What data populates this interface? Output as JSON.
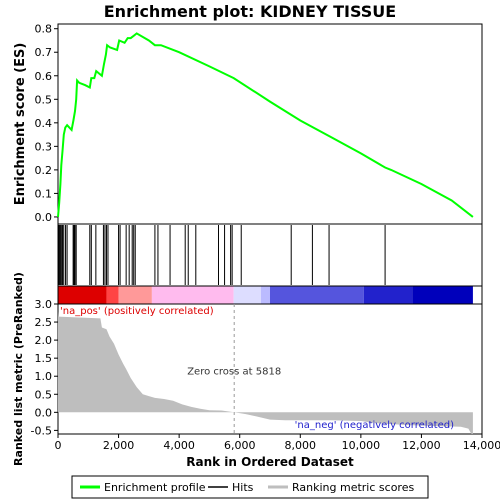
{
  "chart_data": {
    "type": "line",
    "title": "Enrichment plot: KIDNEY TISSUE",
    "top_panel": {
      "ylabel": "Enrichment score (ES)",
      "ylim": [
        -0.03,
        0.82
      ],
      "yticks": [
        0.0,
        0.1,
        0.2,
        0.3,
        0.4,
        0.5,
        0.6,
        0.7,
        0.8
      ],
      "ytick_labels": [
        "0.0",
        "0.1",
        "0.2",
        "0.3",
        "0.4",
        "0.5",
        "0.6",
        "0.7",
        "0.8"
      ],
      "series": [
        {
          "name": "Enrichment profile",
          "color": "#00ff00",
          "points": [
            [
              0,
              0.0
            ],
            [
              40,
              0.06
            ],
            [
              80,
              0.14
            ],
            [
              110,
              0.22
            ],
            [
              150,
              0.28
            ],
            [
              190,
              0.35
            ],
            [
              240,
              0.38
            ],
            [
              300,
              0.39
            ],
            [
              450,
              0.37
            ],
            [
              510,
              0.41
            ],
            [
              560,
              0.45
            ],
            [
              600,
              0.5
            ],
            [
              630,
              0.58
            ],
            [
              700,
              0.57
            ],
            [
              900,
              0.56
            ],
            [
              1050,
              0.55
            ],
            [
              1100,
              0.59
            ],
            [
              1200,
              0.59
            ],
            [
              1260,
              0.62
            ],
            [
              1450,
              0.6
            ],
            [
              1520,
              0.65
            ],
            [
              1580,
              0.69
            ],
            [
              1620,
              0.73
            ],
            [
              1720,
              0.72
            ],
            [
              1950,
              0.71
            ],
            [
              2020,
              0.75
            ],
            [
              2200,
              0.74
            ],
            [
              2300,
              0.76
            ],
            [
              2400,
              0.76
            ],
            [
              2500,
              0.77
            ],
            [
              2600,
              0.78
            ],
            [
              3000,
              0.75
            ],
            [
              3200,
              0.73
            ],
            [
              3400,
              0.73
            ],
            [
              4000,
              0.7
            ],
            [
              5000,
              0.64
            ],
            [
              5800,
              0.59
            ],
            [
              7000,
              0.49
            ],
            [
              8000,
              0.41
            ],
            [
              9000,
              0.34
            ],
            [
              10000,
              0.27
            ],
            [
              10800,
              0.21
            ],
            [
              11000,
              0.2
            ],
            [
              12000,
              0.14
            ],
            [
              13000,
              0.07
            ],
            [
              13700,
              0.0
            ]
          ]
        }
      ],
      "hits": [
        30,
        60,
        90,
        110,
        150,
        190,
        250,
        300,
        500,
        530,
        560,
        600,
        1050,
        1100,
        1250,
        1500,
        1550,
        1600,
        1650,
        2000,
        2050,
        2250,
        2350,
        2450,
        2500,
        2550,
        3200,
        3300,
        3700,
        4200,
        4300,
        4550,
        5300,
        5500,
        5700,
        5750,
        6050,
        7700,
        8400,
        8950,
        10800
      ]
    },
    "heatmap": {
      "colors": [
        "#dd0000",
        "#ee3333",
        "#ff7777",
        "#ffaaaa",
        "#ffccff",
        "#ffddff",
        "#ffffff",
        "#ddddff",
        "#aaaaff",
        "#6666ee",
        "#2222dd",
        "#0000cc"
      ],
      "segments": [
        [
          0,
          1600
        ],
        [
          1600,
          2000
        ],
        [
          2000,
          3100
        ],
        [
          3100,
          5800
        ],
        [
          5800,
          6700
        ],
        [
          6700,
          7000
        ],
        [
          7000,
          10100
        ],
        [
          10100,
          11700
        ],
        [
          11700,
          13700
        ]
      ],
      "segment_colors": [
        "#dd0000",
        "#ff4444",
        "#ff9999",
        "#ffbbee",
        "#ddddff",
        "#bbbbff",
        "#5555dd",
        "#2222cc",
        "#0000bb"
      ]
    },
    "bottom_panel": {
      "ylabel": "Ranked list metric (PreRanked)",
      "ylim": [
        -0.6,
        3.0
      ],
      "yticks": [
        -0.5,
        0.0,
        0.5,
        1.0,
        1.5,
        2.0,
        2.5,
        3.0
      ],
      "ytick_labels": [
        "-0.5",
        "0.0",
        "0.5",
        "1.0",
        "1.5",
        "2.0",
        "2.5",
        "3.0"
      ],
      "metric_profile": [
        [
          0,
          2.8
        ],
        [
          10,
          2.65
        ],
        [
          1400,
          2.6
        ],
        [
          1450,
          2.35
        ],
        [
          1600,
          2.3
        ],
        [
          1700,
          2.1
        ],
        [
          1850,
          1.9
        ],
        [
          2000,
          1.6
        ],
        [
          2150,
          1.35
        ],
        [
          2250,
          1.2
        ],
        [
          2400,
          0.95
        ],
        [
          2600,
          0.7
        ],
        [
          2800,
          0.5
        ],
        [
          3000,
          0.45
        ],
        [
          3200,
          0.4
        ],
        [
          3500,
          0.37
        ],
        [
          3800,
          0.32
        ],
        [
          4100,
          0.22
        ],
        [
          4400,
          0.15
        ],
        [
          4700,
          0.1
        ],
        [
          5000,
          0.06
        ],
        [
          5400,
          0.05
        ],
        [
          5818,
          0.0
        ],
        [
          6200,
          -0.05
        ],
        [
          6600,
          -0.12
        ],
        [
          7000,
          -0.2
        ],
        [
          7500,
          -0.22
        ],
        [
          9000,
          -0.22
        ],
        [
          10000,
          -0.24
        ],
        [
          10500,
          -0.3
        ],
        [
          11500,
          -0.35
        ],
        [
          12500,
          -0.38
        ],
        [
          13300,
          -0.4
        ],
        [
          13550,
          -0.45
        ],
        [
          13650,
          -0.6
        ],
        [
          13700,
          -0.6
        ]
      ],
      "zero_cross_label": "Zero cross at 5818",
      "zero_cross_x": 5818,
      "pos_label": "'na_pos' (positively correlated)",
      "neg_label": "'na_neg' (negatively correlated)"
    },
    "x_axis": {
      "xlabel": "Rank in Ordered Dataset",
      "xlim": [
        0,
        14000
      ],
      "xticks": [
        0,
        2000,
        4000,
        6000,
        8000,
        10000,
        12000,
        14000
      ],
      "xtick_labels": [
        "0",
        "2,000",
        "4,000",
        "6,000",
        "8,000",
        "10,000",
        "12,000",
        "14,000"
      ]
    },
    "legend": {
      "placement": "bottom",
      "items": [
        {
          "label": "Enrichment profile",
          "color": "#00ff00"
        },
        {
          "label": "Hits",
          "color": "#000000"
        },
        {
          "label": "Ranking metric scores",
          "color": "#bebebe"
        }
      ]
    }
  }
}
